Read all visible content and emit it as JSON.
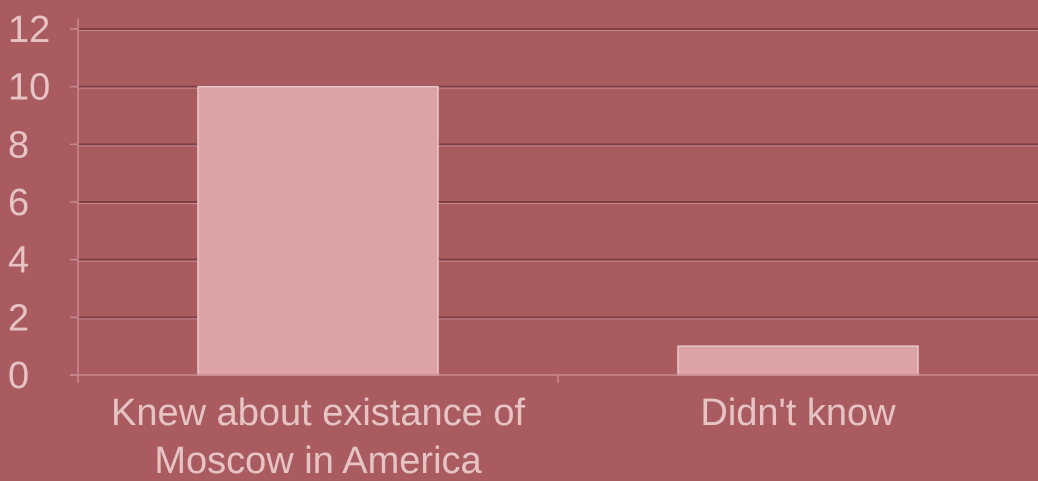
{
  "chart_data": {
    "type": "bar",
    "title": "",
    "xlabel": "",
    "ylabel": "",
    "categories": [
      [
        "Knew about existance of",
        "Moscow in America"
      ],
      [
        "Didn't know"
      ]
    ],
    "values": [
      10,
      1
    ],
    "ylim": [
      0,
      12
    ],
    "yticks": [
      "0",
      "2",
      "4",
      "6",
      "8",
      "10",
      "12"
    ],
    "grid": true,
    "legend": "none",
    "colors": {
      "background": "#a95b60",
      "bar": "#dba3a4",
      "text": "#e6c4c4",
      "grid": "#7e3f45"
    }
  }
}
